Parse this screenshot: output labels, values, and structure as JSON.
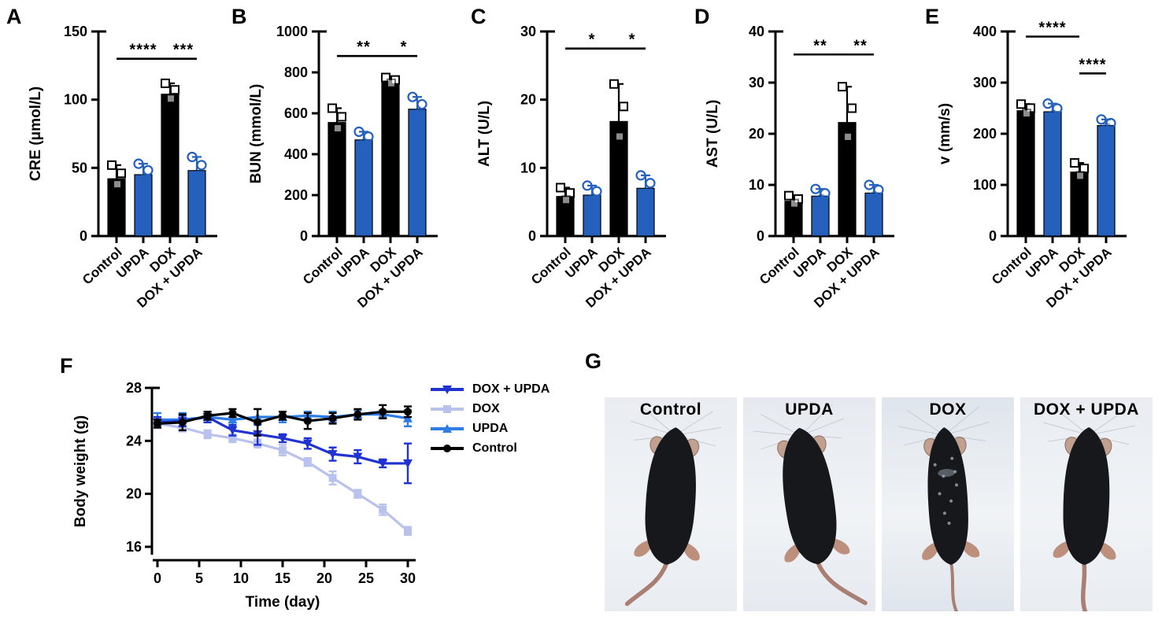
{
  "figure": {
    "background": "#ffffff"
  },
  "colors": {
    "bar_black": "#000000",
    "bar_blue": "#2560bd",
    "line_dox_upda": "#1f33d2",
    "line_dox": "#b9c2ec",
    "line_upda": "#2e7ce5",
    "line_control": "#000000"
  },
  "chart_data": [
    {
      "panel": "A",
      "type": "bar",
      "ylabel": "CRE (μmol/L)",
      "categories": [
        "Control",
        "UPDA",
        "DOX",
        "DOX + UPDA"
      ],
      "values": [
        42,
        45,
        104,
        48
      ],
      "errors": [
        10,
        8,
        8,
        10
      ],
      "ylim": [
        0,
        150
      ],
      "yticks": [
        0,
        50,
        100,
        150
      ],
      "bar_colors": [
        "#000000",
        "#2560bd",
        "#000000",
        "#2560bd"
      ],
      "marker_shapes": [
        "square",
        "circle",
        "square",
        "circle"
      ],
      "significance": [
        {
          "from": 0,
          "to": 2,
          "label": "****",
          "y": 130
        },
        {
          "from": 2,
          "to": 3,
          "label": "***",
          "y": 130
        }
      ]
    },
    {
      "panel": "B",
      "type": "bar",
      "ylabel": "BUN (mmol/L)",
      "categories": [
        "Control",
        "UPDA",
        "DOX",
        "DOX + UPDA"
      ],
      "values": [
        555,
        470,
        755,
        620
      ],
      "errors": [
        70,
        40,
        20,
        60
      ],
      "ylim": [
        0,
        1000
      ],
      "yticks": [
        0,
        200,
        400,
        600,
        800,
        1000
      ],
      "bar_colors": [
        "#000000",
        "#2560bd",
        "#000000",
        "#2560bd"
      ],
      "marker_shapes": [
        "square",
        "circle",
        "square",
        "circle"
      ],
      "significance": [
        {
          "from": 0,
          "to": 2,
          "label": "**",
          "y": 880
        },
        {
          "from": 2,
          "to": 3,
          "label": "*",
          "y": 880
        }
      ]
    },
    {
      "panel": "C",
      "type": "bar",
      "ylabel": "ALT (U/L)",
      "categories": [
        "Control",
        "UPDA",
        "DOX",
        "DOX + UPDA"
      ],
      "values": [
        5.8,
        6.0,
        16.8,
        7.0
      ],
      "errors": [
        1.3,
        1.4,
        5.5,
        1.9
      ],
      "ylim": [
        0,
        30
      ],
      "yticks": [
        0,
        10,
        20,
        30
      ],
      "bar_colors": [
        "#000000",
        "#2560bd",
        "#000000",
        "#2560bd"
      ],
      "marker_shapes": [
        "square",
        "circle",
        "square",
        "circle"
      ],
      "significance": [
        {
          "from": 0,
          "to": 2,
          "label": "*",
          "y": 27.5
        },
        {
          "from": 2,
          "to": 3,
          "label": "*",
          "y": 27.5
        }
      ]
    },
    {
      "panel": "D",
      "type": "bar",
      "ylabel": "AST (U/L)",
      "categories": [
        "Control",
        "UPDA",
        "DOX",
        "DOX + UPDA"
      ],
      "values": [
        6.8,
        7.8,
        22.2,
        8.4
      ],
      "errors": [
        1.1,
        1.4,
        7.0,
        1.6
      ],
      "ylim": [
        0,
        40
      ],
      "yticks": [
        0,
        10,
        20,
        30,
        40
      ],
      "bar_colors": [
        "#000000",
        "#2560bd",
        "#000000",
        "#2560bd"
      ],
      "marker_shapes": [
        "square",
        "circle",
        "square",
        "circle"
      ],
      "significance": [
        {
          "from": 0,
          "to": 2,
          "label": "**",
          "y": 35.5
        },
        {
          "from": 2,
          "to": 3,
          "label": "**",
          "y": 35.5
        }
      ]
    },
    {
      "panel": "E",
      "type": "bar",
      "ylabel": "v (mm/s)",
      "categories": [
        "Control",
        "UPDA",
        "DOX",
        "DOX + UPDA"
      ],
      "values": [
        245,
        243,
        125,
        216
      ],
      "errors": [
        13,
        16,
        18,
        12
      ],
      "ylim": [
        0,
        400
      ],
      "yticks": [
        0,
        100,
        200,
        300,
        400
      ],
      "bar_colors": [
        "#000000",
        "#2560bd",
        "#000000",
        "#2560bd"
      ],
      "marker_shapes": [
        "square",
        "circle",
        "square",
        "circle"
      ],
      "significance": [
        {
          "from": 0,
          "to": 2,
          "label": "****",
          "y": 390
        },
        {
          "from": 2,
          "to": 3,
          "label": "****",
          "y": 318
        }
      ]
    },
    {
      "panel": "F",
      "type": "line",
      "xlabel": "Time (day)",
      "ylabel": "Body weight (g)",
      "x": [
        0,
        3,
        6,
        9,
        12,
        15,
        18,
        21,
        24,
        27,
        30
      ],
      "xticks": [
        0,
        5,
        10,
        15,
        20,
        25,
        30
      ],
      "ylim": [
        15,
        28
      ],
      "yticks": [
        16,
        20,
        24,
        28
      ],
      "series": [
        {
          "name": "DOX",
          "color": "#b9c2ec",
          "marker": "square",
          "values": [
            25.3,
            25.0,
            24.5,
            24.2,
            23.8,
            23.3,
            22.4,
            21.2,
            20.0,
            18.8,
            17.2
          ],
          "errors": [
            0.3,
            0.3,
            0.3,
            0.3,
            0.3,
            0.4,
            0.3,
            0.5,
            0.3,
            0.4,
            0.3
          ]
        },
        {
          "name": "UPDA",
          "color": "#2e7ce5",
          "marker": "triangle-up",
          "values": [
            25.6,
            25.6,
            25.8,
            25.6,
            25.8,
            25.8,
            25.9,
            25.8,
            26.0,
            26.0,
            25.7
          ],
          "errors": [
            0.5,
            0.5,
            0.4,
            0.5,
            0.6,
            0.4,
            0.3,
            0.4,
            0.3,
            0.3,
            0.6
          ]
        },
        {
          "name": "DOX + UPDA",
          "color": "#1f33d2",
          "marker": "triangle-down",
          "values": [
            25.4,
            25.5,
            25.8,
            24.8,
            24.5,
            24.2,
            23.8,
            23.0,
            22.8,
            22.3,
            22.3
          ],
          "errors": [
            0.4,
            0.4,
            0.4,
            0.4,
            0.8,
            0.3,
            0.4,
            0.5,
            0.5,
            0.3,
            1.5
          ]
        },
        {
          "name": "Control",
          "color": "#000000",
          "marker": "circle",
          "values": [
            25.3,
            25.4,
            25.9,
            26.1,
            25.4,
            25.9,
            25.5,
            25.7,
            26.0,
            26.2,
            26.2
          ],
          "errors": [
            0.3,
            0.6,
            0.3,
            0.3,
            1.0,
            0.3,
            0.6,
            0.4,
            0.4,
            0.5,
            0.4
          ]
        }
      ],
      "legend_order": [
        "DOX + UPDA",
        "DOX",
        "UPDA",
        "Control"
      ]
    }
  ],
  "photos": {
    "panel": "G",
    "items": [
      {
        "caption": "Control",
        "pose": {
          "tilt": 4,
          "girth": 1.0,
          "tail": "left",
          "bg": "#e9edf2",
          "speckles": false
        }
      },
      {
        "caption": "UPDA",
        "pose": {
          "tilt": -8,
          "girth": 1.0,
          "tail": "right",
          "bg": "#e6eaf0",
          "speckles": false
        }
      },
      {
        "caption": "DOX",
        "pose": {
          "tilt": -3,
          "girth": 0.8,
          "tail": "down",
          "bg": "#dfe5ec",
          "speckles": true
        }
      },
      {
        "caption": "DOX + UPDA",
        "pose": {
          "tilt": 2,
          "girth": 0.93,
          "tail": "down",
          "bg": "#e9edf2",
          "speckles": false
        }
      }
    ]
  }
}
